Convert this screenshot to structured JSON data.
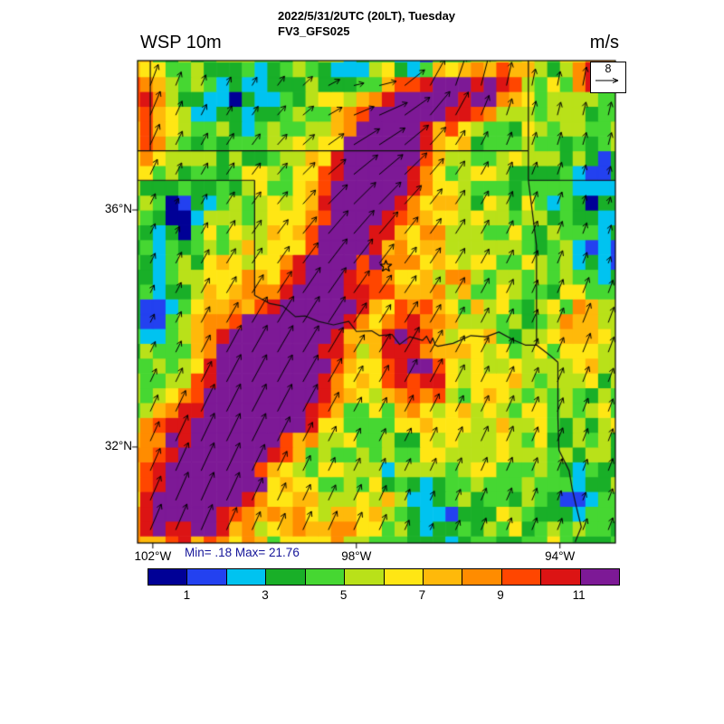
{
  "header": {
    "datetime_line": "2022/5/31/2UTC (20LT), Tuesday",
    "model_line": "FV3_GFS025",
    "plot_title": "WSP 10m",
    "units_label": "m/s"
  },
  "stats_line": "Min= .18 Max= 21.76",
  "stats_color": "#151599",
  "reference_box": {
    "value": "8"
  },
  "chart_data": {
    "type": "heatmap",
    "title": "WSP 10m",
    "units": "m/s",
    "model": "FV3_GFS025",
    "valid_time": "2022/5/31/2UTC (20LT), Tuesday",
    "stat_min": 0.18,
    "stat_max": 21.76,
    "reference_vector_ms": 8,
    "geo": {
      "lon_range": [
        -102.3,
        -92.91
      ],
      "lat_range": [
        30.38,
        38.52
      ]
    },
    "axis_ticks": {
      "lat": [
        {
          "label": "36°N",
          "value": 36
        },
        {
          "label": "32°N",
          "value": 32
        }
      ],
      "lon": [
        {
          "label": "102°W",
          "value": -102
        },
        {
          "label": "98°W",
          "value": -98
        },
        {
          "label": "94°W",
          "value": -94
        }
      ]
    },
    "colorbar": {
      "levels": [
        1,
        2,
        3,
        4,
        5,
        6,
        7,
        8,
        9,
        10,
        11
      ],
      "tick_values": [
        1,
        3,
        5,
        7,
        9,
        11
      ],
      "tick_labels": [
        "1",
        "3",
        "5",
        "7",
        "9",
        "11"
      ],
      "colors": [
        "#000096",
        "#2341F0",
        "#00C3F0",
        "#19AF28",
        "#46D732",
        "#B9E119",
        "#FFE614",
        "#FFB90A",
        "#FF8C00",
        "#FF4600",
        "#DC1414",
        "#7D1996"
      ]
    },
    "star_marker": {
      "lon": -97.42,
      "lat": 35.05
    },
    "field_model": {
      "base": 4.5,
      "noise": {
        "cell_deg": 0.25,
        "amp": 1.25,
        "wave_amp": 0.8
      },
      "blobs": [
        [
          -101.2,
          31.1,
          6.5,
          1.1,
          0.9
        ],
        [
          -100.6,
          32.2,
          6.0,
          1.0,
          0.9
        ],
        [
          -99.4,
          33.1,
          9.5,
          0.9,
          0.8
        ],
        [
          -99.9,
          33.4,
          8.0,
          0.8,
          0.7
        ],
        [
          -98.9,
          34.3,
          5.0,
          0.8,
          0.8
        ],
        [
          -98.3,
          35.3,
          5.0,
          0.7,
          0.9
        ],
        [
          -97.9,
          36.2,
          5.5,
          0.6,
          0.8
        ],
        [
          -97.4,
          37.1,
          10.0,
          0.65,
          0.75
        ],
        [
          -96.6,
          37.9,
          7.0,
          0.8,
          0.6
        ],
        [
          -95.6,
          38.1,
          6.5,
          0.9,
          0.5
        ],
        [
          -102.2,
          37.6,
          6.0,
          0.5,
          0.9
        ],
        [
          -93.2,
          38.35,
          6.0,
          0.5,
          0.4
        ],
        [
          -97.1,
          33.5,
          5.0,
          0.45,
          0.8
        ],
        [
          -96.5,
          33.2,
          3.5,
          0.4,
          0.7
        ],
        [
          -93.5,
          33.9,
          3.5,
          0.5,
          0.8
        ],
        [
          -99.8,
          34.3,
          2.5,
          2.0,
          1.6
        ],
        [
          -100.9,
          31.8,
          3.0,
          1.6,
          1.4
        ],
        [
          -97.6,
          36.5,
          3.0,
          1.4,
          1.2
        ],
        [
          -96.5,
          34.6,
          2.0,
          1.6,
          1.5
        ],
        [
          -95.3,
          32.6,
          1.8,
          1.2,
          1.0
        ],
        [
          -98.8,
          30.6,
          3.0,
          0.7,
          0.5
        ],
        [
          -97.8,
          30.8,
          2.5,
          0.6,
          0.5
        ],
        [
          -102.1,
          30.6,
          3.0,
          0.5,
          0.4
        ],
        [
          -101.55,
          35.9,
          -3.8,
          0.5,
          0.5
        ],
        [
          -101.9,
          34.4,
          -3.0,
          0.5,
          0.8
        ],
        [
          -101.5,
          33.3,
          -2.0,
          0.6,
          0.5
        ],
        [
          -100.3,
          37.9,
          -2.2,
          0.8,
          0.4
        ],
        [
          -96.75,
          38.45,
          -5.5,
          0.45,
          0.35
        ],
        [
          -95.9,
          38.45,
          -4.0,
          0.35,
          0.3
        ],
        [
          -97.9,
          38.2,
          -3.0,
          0.5,
          0.35
        ],
        [
          -93.2,
          36.3,
          -3.2,
          0.5,
          0.5
        ],
        [
          -93.1,
          35.2,
          -3.0,
          0.45,
          0.45
        ],
        [
          -96.6,
          30.75,
          -3.0,
          0.6,
          0.4
        ],
        [
          -93.7,
          31.1,
          -2.2,
          0.45,
          0.4
        ]
      ]
    },
    "flow_model": {
      "base_u": 1.2,
      "base_v": 5.2,
      "grid_deg": 0.5,
      "vortex": {
        "lon": -96.9,
        "lat": 38.5,
        "strength": 9,
        "soften": 0.8
      }
    },
    "borders": [
      {
        "name": "co-ks",
        "points": [
          [
            -102.05,
            38.55
          ],
          [
            -102.05,
            37.0
          ]
        ]
      },
      {
        "name": "ks-ok-north",
        "points": [
          [
            -102.35,
            37.0
          ],
          [
            -94.62,
            37.0
          ]
        ]
      },
      {
        "name": "ks-mo",
        "points": [
          [
            -94.62,
            38.55
          ],
          [
            -94.62,
            37.0
          ]
        ]
      },
      {
        "name": "ok-panhandle-south",
        "points": [
          [
            -102.35,
            36.5
          ],
          [
            -100.0,
            36.5
          ]
        ]
      },
      {
        "name": "tx-ok-100w",
        "points": [
          [
            -100.0,
            36.5
          ],
          [
            -100.0,
            34.56
          ]
        ]
      },
      {
        "name": "mo-ar",
        "points": [
          [
            -94.62,
            36.5
          ],
          [
            -92.85,
            36.5
          ]
        ]
      },
      {
        "name": "ok-mo-east",
        "points": [
          [
            -94.62,
            37.0
          ],
          [
            -94.62,
            36.5
          ]
        ]
      },
      {
        "name": "ok-ar-east",
        "points": [
          [
            -94.62,
            36.5
          ],
          [
            -94.46,
            35.4
          ],
          [
            -94.46,
            33.72
          ]
        ]
      },
      {
        "name": "red-river",
        "points": [
          [
            -100.0,
            34.56
          ],
          [
            -99.7,
            34.42
          ],
          [
            -99.45,
            34.38
          ],
          [
            -99.2,
            34.2
          ],
          [
            -99.0,
            34.21
          ],
          [
            -98.75,
            34.12
          ],
          [
            -98.45,
            34.06
          ],
          [
            -98.15,
            34.12
          ],
          [
            -98.0,
            33.95
          ],
          [
            -97.7,
            33.96
          ],
          [
            -97.55,
            33.88
          ],
          [
            -97.3,
            33.9
          ],
          [
            -97.15,
            33.73
          ],
          [
            -96.95,
            33.86
          ],
          [
            -96.7,
            33.8
          ],
          [
            -96.62,
            33.87
          ],
          [
            -96.55,
            33.75
          ],
          [
            -96.5,
            33.84
          ],
          [
            -96.45,
            33.72
          ],
          [
            -96.4,
            33.7
          ],
          [
            -96.1,
            33.75
          ],
          [
            -95.75,
            33.88
          ],
          [
            -95.45,
            33.86
          ],
          [
            -95.2,
            33.94
          ],
          [
            -94.9,
            33.8
          ],
          [
            -94.68,
            33.72
          ],
          [
            -94.46,
            33.72
          ],
          [
            -94.2,
            33.55
          ],
          [
            -94.04,
            33.43
          ]
        ]
      },
      {
        "name": "tx-la",
        "points": [
          [
            -94.04,
            33.43
          ],
          [
            -94.04,
            32.5
          ],
          [
            -94.02,
            31.95
          ],
          [
            -93.82,
            31.6
          ],
          [
            -93.76,
            31.3
          ],
          [
            -93.68,
            31.0
          ],
          [
            -93.58,
            30.65
          ],
          [
            -93.7,
            30.4
          ]
        ]
      }
    ]
  }
}
